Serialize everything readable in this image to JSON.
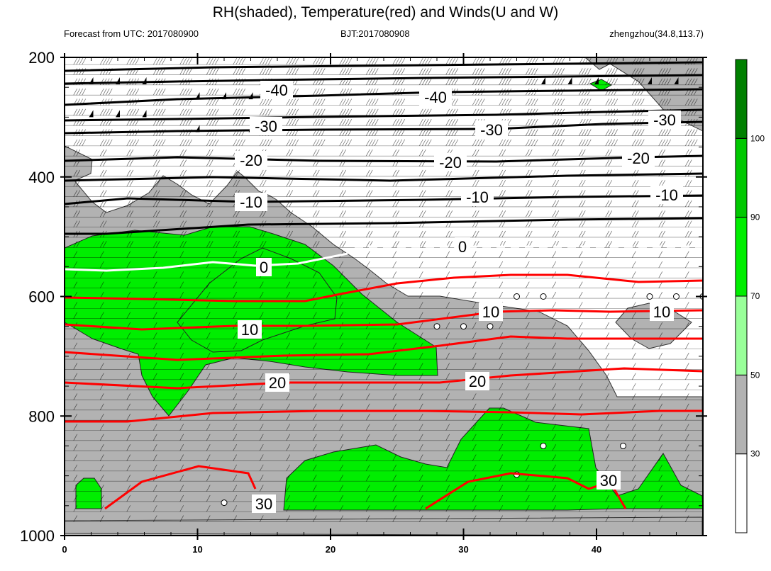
{
  "header": {
    "title": "RH(shaded), Temperature(red) and Winds(U and W)",
    "left": "Forecast from UTC: 2017080900",
    "center": "BJT:2017080908",
    "right": "zhengzhou(34.8,113.7)"
  },
  "chart_data": {
    "type": "contour",
    "title": "RH(shaded), Temperature(red) and Winds(U and W)",
    "x_ticks": [
      "0",
      "10",
      "20",
      "30",
      "40"
    ],
    "xlim": [
      0,
      48
    ],
    "y_ticks": [
      "200",
      "400",
      "600",
      "800",
      "1000"
    ],
    "ylim": [
      200,
      1000
    ],
    "y_inverted": true,
    "colorbar": {
      "labels": [
        "30",
        "50",
        "70",
        "90",
        "100"
      ],
      "colors": [
        "#ffffff",
        "#b2b2b2",
        "#99ff99",
        "#00ee00",
        "#00c800",
        "#008000"
      ]
    },
    "temperature_labels": [
      "-40",
      "-40",
      "-30",
      "-30",
      "-30",
      "-20",
      "-20",
      "-20",
      "-10",
      "-10",
      "-10",
      "0",
      "0",
      "10",
      "10",
      "10",
      "20",
      "20",
      "30",
      "30"
    ],
    "colors": {
      "temperature_negative": "#000000",
      "temperature_zero": "#ffffff",
      "temperature_positive": "#ff0000"
    }
  }
}
